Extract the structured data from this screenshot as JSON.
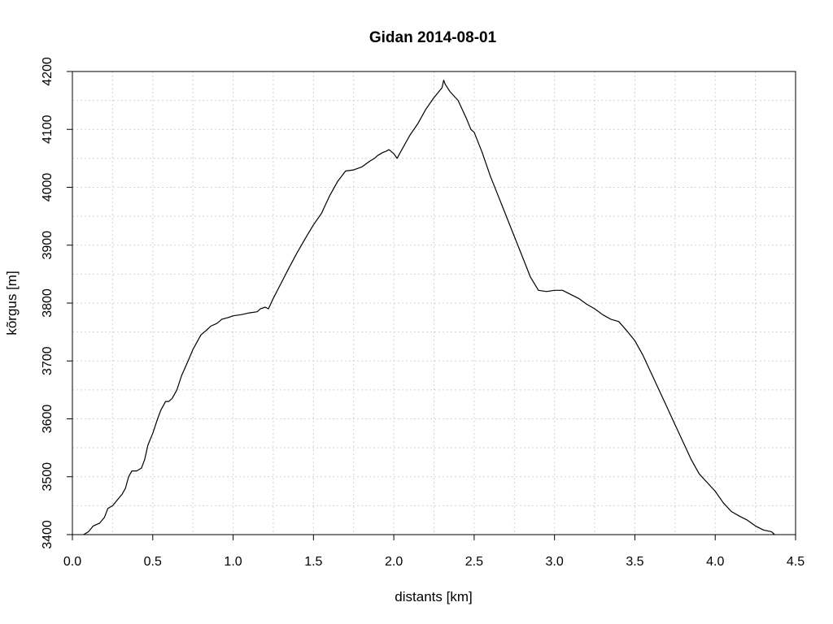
{
  "chart_data": {
    "type": "line",
    "title": "Gidan 2014-08-01",
    "xlabel": "distants [km]",
    "ylabel": "kõrgus [m]",
    "xlim": [
      0,
      4.5
    ],
    "ylim": [
      3400,
      4200
    ],
    "xticks": [
      "0.0",
      "0.5",
      "1.0",
      "1.5",
      "2.0",
      "2.5",
      "3.0",
      "3.5",
      "4.0",
      "4.5"
    ],
    "yticks": [
      "3400",
      "3500",
      "3600",
      "3700",
      "3800",
      "3900",
      "4000",
      "4100",
      "4200"
    ],
    "grid": true,
    "series": [
      {
        "x": [
          0.07,
          0.1,
          0.13,
          0.17,
          0.2,
          0.22,
          0.25,
          0.28,
          0.31,
          0.33,
          0.35,
          0.37,
          0.38,
          0.4,
          0.43,
          0.45,
          0.47,
          0.5,
          0.53,
          0.55,
          0.58,
          0.6,
          0.62,
          0.65,
          0.68,
          0.72,
          0.75,
          0.78,
          0.8,
          0.83,
          0.86,
          0.9,
          0.93,
          0.97,
          1.0,
          1.05,
          1.1,
          1.15,
          1.17,
          1.2,
          1.22,
          1.25,
          1.3,
          1.35,
          1.4,
          1.45,
          1.5,
          1.55,
          1.6,
          1.65,
          1.7,
          1.75,
          1.8,
          1.85,
          1.88,
          1.9,
          1.93,
          1.95,
          1.97,
          2.0,
          2.02,
          2.05,
          2.08,
          2.1,
          2.15,
          2.2,
          2.25,
          2.28,
          2.3,
          2.31,
          2.32,
          2.35,
          2.4,
          2.45,
          2.48,
          2.5,
          2.55,
          2.6,
          2.65,
          2.7,
          2.75,
          2.8,
          2.85,
          2.9,
          2.95,
          3.0,
          3.05,
          3.1,
          3.15,
          3.2,
          3.25,
          3.3,
          3.35,
          3.4,
          3.45,
          3.5,
          3.55,
          3.6,
          3.65,
          3.7,
          3.75,
          3.8,
          3.85,
          3.9,
          3.95,
          4.0,
          4.05,
          4.1,
          4.15,
          4.2,
          4.25,
          4.3,
          4.35,
          4.37
        ],
        "values": [
          3400,
          3405,
          3415,
          3420,
          3430,
          3445,
          3450,
          3460,
          3470,
          3480,
          3500,
          3510,
          3510,
          3510,
          3515,
          3530,
          3555,
          3575,
          3600,
          3615,
          3630,
          3630,
          3635,
          3650,
          3675,
          3700,
          3720,
          3735,
          3745,
          3752,
          3760,
          3765,
          3772,
          3775,
          3778,
          3780,
          3783,
          3785,
          3790,
          3793,
          3790,
          3808,
          3835,
          3862,
          3888,
          3912,
          3935,
          3955,
          3985,
          4010,
          4028,
          4030,
          4035,
          4045,
          4050,
          4055,
          4060,
          4062,
          4065,
          4058,
          4050,
          4065,
          4080,
          4090,
          4110,
          4135,
          4155,
          4165,
          4172,
          4185,
          4178,
          4165,
          4150,
          4120,
          4100,
          4095,
          4060,
          4020,
          3985,
          3950,
          3915,
          3880,
          3845,
          3822,
          3820,
          3822,
          3822,
          3815,
          3808,
          3798,
          3790,
          3780,
          3772,
          3768,
          3752,
          3735,
          3710,
          3680,
          3650,
          3620,
          3590,
          3560,
          3530,
          3505,
          3490,
          3475,
          3455,
          3440,
          3432,
          3425,
          3415,
          3408,
          3405,
          3400
        ]
      }
    ]
  }
}
